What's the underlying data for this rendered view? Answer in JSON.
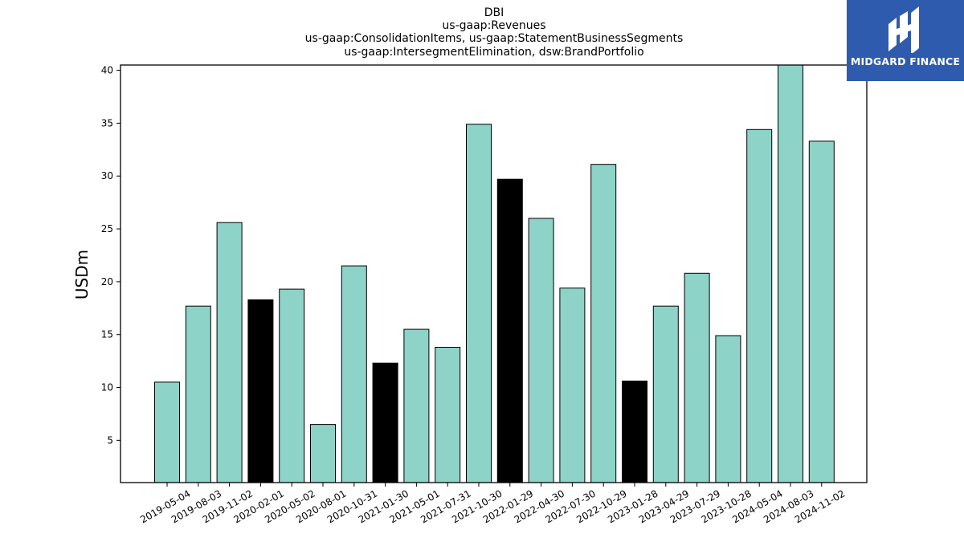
{
  "chart_data": {
    "type": "bar",
    "title_lines": [
      "DBI",
      "us-gaap:Revenues",
      "us-gaap:ConsolidationItems, us-gaap:StatementBusinessSegments",
      "us-gaap:IntersegmentElimination, dsw:BrandPortfolio"
    ],
    "xlabel": "",
    "ylabel": "USDm",
    "ylim": [
      1,
      40.5
    ],
    "yticks": [
      5,
      10,
      15,
      20,
      25,
      30,
      35,
      40
    ],
    "categories": [
      "2019-05-04",
      "2019-08-03",
      "2019-11-02",
      "2020-02-01",
      "2020-05-02",
      "2020-08-01",
      "2020-10-31",
      "2021-01-30",
      "2021-05-01",
      "2021-07-31",
      "2021-10-30",
      "2022-01-29",
      "2022-04-30",
      "2022-07-30",
      "2022-10-29",
      "2023-01-28",
      "2023-04-29",
      "2023-07-29",
      "2023-10-28",
      "2024-05-04",
      "2024-08-03",
      "2024-11-02"
    ],
    "values": [
      10.5,
      17.7,
      25.6,
      18.3,
      19.3,
      6.5,
      21.5,
      12.3,
      15.5,
      13.8,
      34.9,
      29.7,
      26.0,
      19.4,
      31.1,
      10.6,
      17.7,
      20.8,
      14.9,
      34.4,
      40.6,
      33.3
    ],
    "highlight": [
      false,
      false,
      false,
      true,
      false,
      false,
      false,
      true,
      false,
      false,
      false,
      true,
      false,
      false,
      false,
      true,
      false,
      false,
      false,
      false,
      false,
      false
    ],
    "colors": {
      "bar": "#8dd3c7",
      "highlight": "#000000",
      "edge": "#000000"
    },
    "grid": false,
    "legend": "none"
  },
  "logo": {
    "text": "MIDGARD FINANCE",
    "background": "#2e5bad"
  }
}
